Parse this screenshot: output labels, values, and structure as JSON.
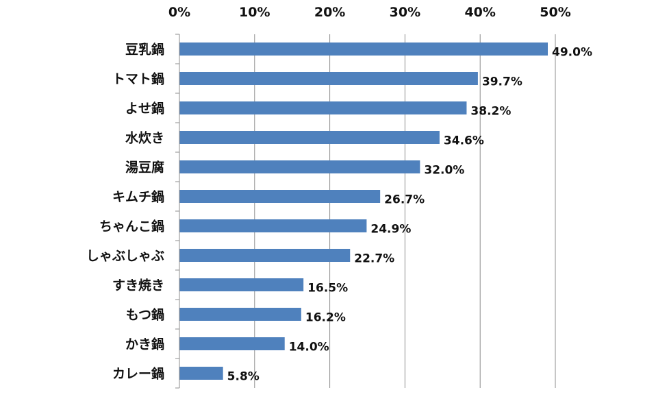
{
  "chart_data": {
    "type": "bar",
    "orientation": "horizontal",
    "title": "",
    "xlabel": "",
    "ylabel": "",
    "xlim": [
      0,
      50
    ],
    "x_ticks": [
      0,
      10,
      20,
      30,
      40,
      50
    ],
    "x_tick_labels": [
      "0%",
      "10%",
      "20%",
      "30%",
      "40%",
      "50%"
    ],
    "x_axis_position": "top",
    "grid": true,
    "legend": "none",
    "bar_color": "#4f81bd",
    "categories": [
      "豆乳鍋",
      "トマト鍋",
      "よせ鍋",
      "水炊き",
      "湯豆腐",
      "キムチ鍋",
      "ちゃんこ鍋",
      "しゃぶしゃぶ",
      "すき焼き",
      "もつ鍋",
      "かき鍋",
      "カレー鍋"
    ],
    "values": [
      49.0,
      39.7,
      38.2,
      34.6,
      32.0,
      26.7,
      24.9,
      22.7,
      16.5,
      16.2,
      14.0,
      5.8
    ],
    "value_labels": [
      "49.0%",
      "39.7%",
      "38.2%",
      "34.6%",
      "32.0%",
      "26.7%",
      "24.9%",
      "22.7%",
      "16.5%",
      "16.2%",
      "14.0%",
      "5.8%"
    ]
  }
}
